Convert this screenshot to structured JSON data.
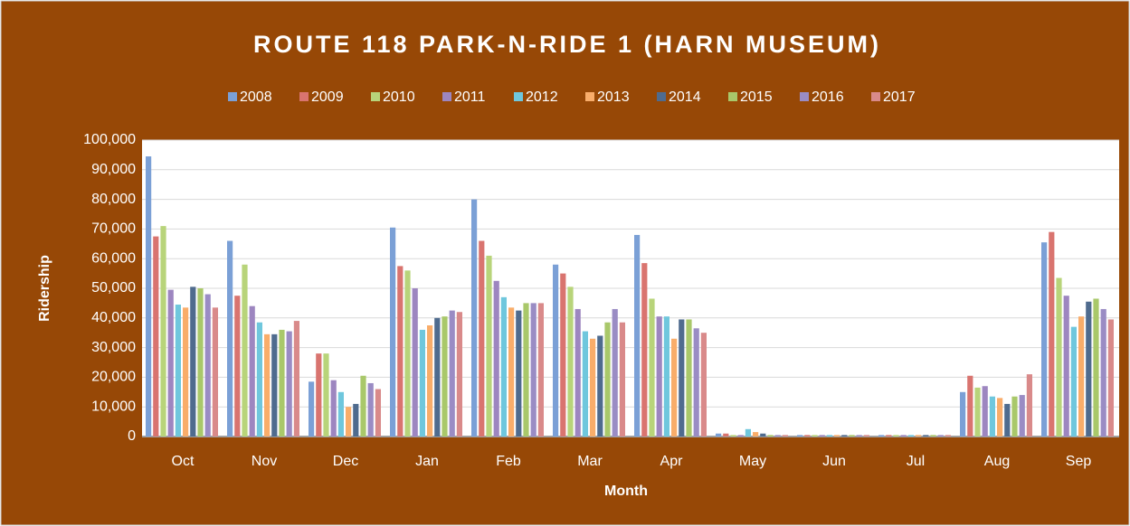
{
  "chart_data": {
    "type": "bar",
    "title": "ROUTE 118 PARK-N-RIDE 1 (HARN MUSEUM)",
    "x_label": "Month",
    "y_label": "Ridership",
    "categories": [
      "Oct",
      "Nov",
      "Dec",
      "Jan",
      "Feb",
      "Mar",
      "Apr",
      "May",
      "Jun",
      "Jul",
      "Aug",
      "Sep"
    ],
    "series": [
      {
        "name": "2008",
        "color": "#7ba0d6",
        "values": [
          94500,
          66000,
          18500,
          70500,
          80000,
          58000,
          68000,
          1000,
          500,
          500,
          15000,
          65500
        ]
      },
      {
        "name": "2009",
        "color": "#d9746f",
        "values": [
          67500,
          47500,
          28000,
          57500,
          66000,
          55000,
          58500,
          1000,
          500,
          500,
          20500,
          69000
        ]
      },
      {
        "name": "2010",
        "color": "#b8d47a",
        "values": [
          71000,
          58000,
          28000,
          56000,
          61000,
          50500,
          46500,
          500,
          500,
          500,
          16500,
          53500
        ]
      },
      {
        "name": "2011",
        "color": "#9d86c0",
        "values": [
          49500,
          44000,
          19000,
          50000,
          52500,
          43000,
          40500,
          500,
          500,
          500,
          17000,
          47500
        ]
      },
      {
        "name": "2012",
        "color": "#6fc7dd",
        "values": [
          44500,
          38500,
          15000,
          36000,
          47000,
          35500,
          40500,
          2500,
          500,
          500,
          13500,
          37000
        ]
      },
      {
        "name": "2013",
        "color": "#f9ad6a",
        "values": [
          43500,
          34500,
          10000,
          37500,
          43500,
          33000,
          33000,
          1500,
          500,
          500,
          13000,
          40500
        ]
      },
      {
        "name": "2014",
        "color": "#4f6b8e",
        "values": [
          50500,
          34500,
          11000,
          40000,
          42500,
          34000,
          39500,
          1000,
          500,
          500,
          11000,
          45500
        ]
      },
      {
        "name": "2015",
        "color": "#a9c86a",
        "values": [
          50000,
          36000,
          20500,
          40500,
          45000,
          38500,
          39500,
          500,
          500,
          500,
          13500,
          46500
        ]
      },
      {
        "name": "2016",
        "color": "#9a8cc4",
        "values": [
          48000,
          35500,
          18000,
          42500,
          45000,
          43000,
          36500,
          500,
          500,
          500,
          14000,
          43000
        ]
      },
      {
        "name": "2017",
        "color": "#d98a8a",
        "values": [
          43500,
          39000,
          16000,
          42000,
          45000,
          38500,
          35000,
          500,
          500,
          500,
          21000,
          39500
        ]
      }
    ],
    "ylim": [
      0,
      100000
    ],
    "yticks": [
      0,
      {
        "value": 10000,
        "label": "10,000"
      },
      {
        "value": 20000,
        "label": "20,000"
      },
      {
        "value": 30000,
        "label": "30,000"
      },
      {
        "value": 40000,
        "label": "40,000"
      },
      {
        "value": 50000,
        "label": "50,000"
      },
      {
        "value": 60000,
        "label": "60,000"
      },
      {
        "value": 70000,
        "label": "70,000"
      },
      {
        "value": 80000,
        "label": "80,000"
      },
      {
        "value": 90000,
        "label": "90,000"
      },
      {
        "value": 100000,
        "label": "100,000"
      }
    ],
    "grid": true
  }
}
